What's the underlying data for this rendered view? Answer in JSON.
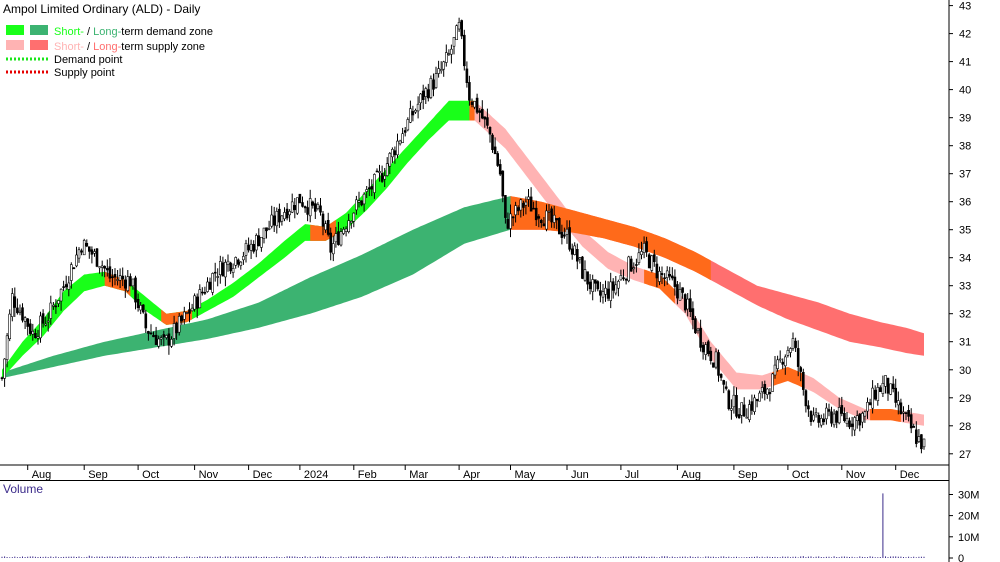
{
  "chart_data": {
    "type": "candlestick",
    "title": "Ampol Limited Ordinary (ALD) - Daily",
    "ylim": [
      26.6,
      43.2
    ],
    "y_ticks": [
      27,
      28,
      29,
      30,
      31,
      32,
      33,
      34,
      35,
      36,
      37,
      38,
      39,
      40,
      41,
      42,
      43
    ],
    "x_ticks": [
      "Aug",
      "Sep",
      "Oct",
      "Nov",
      "Dec",
      "2024",
      "Feb",
      "Mar",
      "Apr",
      "May",
      "Jun",
      "Jul",
      "Aug",
      "Sep",
      "Oct",
      "Nov",
      "Dec"
    ],
    "x_tick_index": [
      10,
      32,
      53,
      75,
      96,
      116,
      137,
      157,
      178,
      198,
      220,
      241,
      263,
      285,
      306,
      327,
      348
    ],
    "num_days": 360,
    "legend": [
      {
        "text_a": "Short-",
        "sep": " / ",
        "text_b": "Long-",
        "rest": "term demand zone",
        "color_a": "#19ff19",
        "color_b": "#3cb371",
        "type": "zone"
      },
      {
        "text_a": "Short-",
        "sep": " / ",
        "text_b": "Long-",
        "rest": "term supply zone",
        "color_a": "#ffb3b3",
        "color_b": "#ff6f6f",
        "type": "zone"
      },
      {
        "label": "Demand point",
        "color": "#19e619",
        "type": "dotted"
      },
      {
        "label": "Supply point",
        "color": "#e60000",
        "type": "dotted"
      }
    ],
    "colors": {
      "short_demand": "#19ff19",
      "long_demand": "#3cb371",
      "short_supply": "#ffb3b3",
      "long_supply": "#ff6f6f",
      "transition": "#ff6a1a",
      "volume": "#3a2a8a"
    },
    "close_anchors": [
      [
        0,
        29.7
      ],
      [
        4,
        32.6
      ],
      [
        8,
        32.0
      ],
      [
        12,
        31.3
      ],
      [
        18,
        31.9
      ],
      [
        24,
        33.0
      ],
      [
        31,
        34.5
      ],
      [
        38,
        33.9
      ],
      [
        42,
        33.3
      ],
      [
        50,
        33.2
      ],
      [
        56,
        31.5
      ],
      [
        63,
        30.9
      ],
      [
        70,
        31.7
      ],
      [
        76,
        32.5
      ],
      [
        83,
        33.5
      ],
      [
        96,
        34.3
      ],
      [
        110,
        35.7
      ],
      [
        116,
        36.1
      ],
      [
        124,
        35.5
      ],
      [
        128,
        34.3
      ],
      [
        136,
        35.6
      ],
      [
        143,
        36.4
      ],
      [
        148,
        37.0
      ],
      [
        156,
        38.5
      ],
      [
        164,
        39.8
      ],
      [
        170,
        40.5
      ],
      [
        174,
        41.2
      ],
      [
        178,
        42.2
      ],
      [
        182,
        39.8
      ],
      [
        186,
        39.2
      ],
      [
        190,
        38.4
      ],
      [
        194,
        37.0
      ],
      [
        196,
        35.2
      ],
      [
        204,
        36.0
      ],
      [
        212,
        35.4
      ],
      [
        220,
        34.8
      ],
      [
        226,
        33.5
      ],
      [
        232,
        32.6
      ],
      [
        238,
        32.9
      ],
      [
        244,
        33.7
      ],
      [
        250,
        34.2
      ],
      [
        256,
        33.4
      ],
      [
        262,
        33.0
      ],
      [
        266,
        32.4
      ],
      [
        272,
        31.1
      ],
      [
        278,
        30.3
      ],
      [
        282,
        29.0
      ],
      [
        288,
        28.5
      ],
      [
        294,
        28.9
      ],
      [
        300,
        29.6
      ],
      [
        304,
        30.5
      ],
      [
        308,
        31.0
      ],
      [
        312,
        29.3
      ],
      [
        316,
        28.1
      ],
      [
        324,
        28.4
      ],
      [
        330,
        28.2
      ],
      [
        336,
        28.4
      ],
      [
        340,
        29.2
      ],
      [
        344,
        29.5
      ],
      [
        350,
        28.5
      ],
      [
        356,
        27.6
      ],
      [
        359,
        27.3
      ]
    ],
    "zones": {
      "short_demand": {
        "start": 0,
        "end": 184,
        "anchors": [
          [
            0,
            30.0,
            29.7
          ],
          [
            8,
            31.0,
            30.5
          ],
          [
            16,
            31.8,
            31.2
          ],
          [
            24,
            32.8,
            32.1
          ],
          [
            32,
            33.4,
            32.8
          ],
          [
            40,
            33.5,
            33.0
          ],
          [
            48,
            33.2,
            32.8
          ],
          [
            56,
            32.6,
            32.1
          ],
          [
            64,
            32.0,
            31.6
          ],
          [
            72,
            32.1,
            31.7
          ],
          [
            80,
            32.5,
            32.1
          ],
          [
            90,
            33.1,
            32.6
          ],
          [
            100,
            33.8,
            33.3
          ],
          [
            110,
            34.6,
            34.0
          ],
          [
            118,
            35.2,
            34.6
          ],
          [
            126,
            35.1,
            34.6
          ],
          [
            134,
            35.6,
            35.0
          ],
          [
            142,
            36.4,
            35.7
          ],
          [
            150,
            37.2,
            36.5
          ],
          [
            158,
            38.0,
            37.4
          ],
          [
            166,
            38.8,
            38.2
          ],
          [
            174,
            39.6,
            38.9
          ],
          [
            184,
            39.6,
            38.9
          ]
        ]
      },
      "long_demand": {
        "start": 0,
        "end": 198,
        "anchors": [
          [
            0,
            29.9,
            29.7
          ],
          [
            20,
            30.5,
            30.1
          ],
          [
            40,
            31.0,
            30.5
          ],
          [
            60,
            31.4,
            30.8
          ],
          [
            80,
            31.8,
            31.1
          ],
          [
            100,
            32.4,
            31.5
          ],
          [
            120,
            33.3,
            32.0
          ],
          [
            140,
            34.1,
            32.6
          ],
          [
            160,
            35.0,
            33.4
          ],
          [
            180,
            35.8,
            34.5
          ],
          [
            198,
            36.2,
            35.0
          ]
        ]
      },
      "short_supply": {
        "start": 184,
        "end": 359,
        "anchors": [
          [
            184,
            39.6,
            38.9
          ],
          [
            196,
            38.6,
            37.9
          ],
          [
            206,
            37.4,
            36.7
          ],
          [
            216,
            36.2,
            35.5
          ],
          [
            226,
            35.0,
            34.4
          ],
          [
            236,
            34.2,
            33.6
          ],
          [
            246,
            33.7,
            33.2
          ],
          [
            256,
            33.4,
            32.9
          ],
          [
            266,
            32.5,
            32.0
          ],
          [
            276,
            31.0,
            30.4
          ],
          [
            286,
            29.9,
            29.3
          ],
          [
            296,
            29.8,
            29.3
          ],
          [
            306,
            30.1,
            29.6
          ],
          [
            316,
            29.7,
            29.2
          ],
          [
            326,
            29.0,
            28.6
          ],
          [
            336,
            28.6,
            28.2
          ],
          [
            346,
            28.6,
            28.2
          ],
          [
            352,
            28.5,
            28.1
          ],
          [
            359,
            28.4,
            28.0
          ]
        ]
      },
      "long_supply": {
        "start": 198,
        "end": 359,
        "anchors": [
          [
            198,
            36.2,
            35.0
          ],
          [
            210,
            36.0,
            35.0
          ],
          [
            222,
            35.7,
            34.9
          ],
          [
            234,
            35.4,
            34.7
          ],
          [
            246,
            35.1,
            34.4
          ],
          [
            258,
            34.7,
            34.0
          ],
          [
            270,
            34.2,
            33.5
          ],
          [
            282,
            33.6,
            32.9
          ],
          [
            294,
            33.0,
            32.3
          ],
          [
            306,
            32.7,
            31.8
          ],
          [
            318,
            32.4,
            31.4
          ],
          [
            330,
            32.0,
            31.0
          ],
          [
            342,
            31.7,
            30.8
          ],
          [
            352,
            31.5,
            30.6
          ],
          [
            359,
            31.3,
            30.5
          ]
        ]
      }
    },
    "transition_segments": [
      {
        "start": 40,
        "end": 50,
        "zone": "short"
      },
      {
        "start": 62,
        "end": 74,
        "zone": "short"
      },
      {
        "start": 120,
        "end": 130,
        "zone": "short"
      },
      {
        "start": 182,
        "end": 194,
        "zone": "short"
      },
      {
        "start": 198,
        "end": 276,
        "zone": "long"
      },
      {
        "start": 250,
        "end": 262,
        "zone": "short"
      },
      {
        "start": 300,
        "end": 312,
        "zone": "short"
      },
      {
        "start": 338,
        "end": 350,
        "zone": "short"
      }
    ],
    "volume_label": "Volume",
    "volume_ticks": [
      "30M",
      "20M",
      "10M",
      "0"
    ],
    "volume_tick_values": [
      30,
      20,
      10,
      0
    ],
    "volume_max": 34,
    "volume_spikes": [
      [
        343,
        30.5
      ],
      [
        34,
        1.1
      ],
      [
        178,
        0.9
      ],
      [
        268,
        0.8
      ],
      [
        312,
        0.9
      ]
    ]
  }
}
